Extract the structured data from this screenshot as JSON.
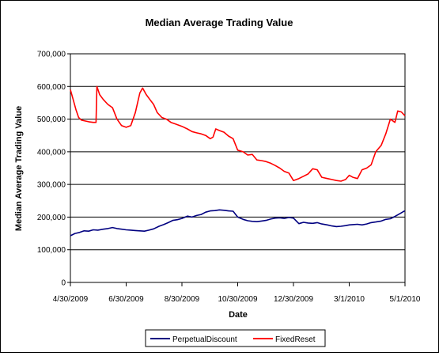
{
  "chart_data": {
    "type": "line",
    "title": "Median Average Trading Value",
    "xlabel": "Date",
    "ylabel": "Median Average Trading Value",
    "ylim": [
      0,
      700000
    ],
    "yticks": [
      "0",
      "100,000",
      "200,000",
      "300,000",
      "400,000",
      "500,000",
      "600,000",
      "700,000"
    ],
    "xticks": [
      "4/30/2009",
      "6/30/2009",
      "8/30/2009",
      "10/30/2009",
      "12/30/2009",
      "3/1/2010",
      "5/1/2010"
    ],
    "grid": true,
    "legend": "bottom",
    "series": [
      {
        "name": "PerpetualDiscount",
        "color": "#000080",
        "points": [
          [
            "2009-04-30",
            143000
          ],
          [
            "2009-05-05",
            150000
          ],
          [
            "2009-05-10",
            153000
          ],
          [
            "2009-05-15",
            158000
          ],
          [
            "2009-05-20",
            157000
          ],
          [
            "2009-05-25",
            161000
          ],
          [
            "2009-05-30",
            160000
          ],
          [
            "2009-06-05",
            163000
          ],
          [
            "2009-06-10",
            165000
          ],
          [
            "2009-06-15",
            168000
          ],
          [
            "2009-06-20",
            165000
          ],
          [
            "2009-06-25",
            163000
          ],
          [
            "2009-06-30",
            161000
          ],
          [
            "2009-07-05",
            160000
          ],
          [
            "2009-07-10",
            159000
          ],
          [
            "2009-07-15",
            158000
          ],
          [
            "2009-07-20",
            157000
          ],
          [
            "2009-07-25",
            160000
          ],
          [
            "2009-07-30",
            164000
          ],
          [
            "2009-08-05",
            172000
          ],
          [
            "2009-08-10",
            177000
          ],
          [
            "2009-08-15",
            183000
          ],
          [
            "2009-08-20",
            190000
          ],
          [
            "2009-08-25",
            192000
          ],
          [
            "2009-08-30",
            196000
          ],
          [
            "2009-09-05",
            203000
          ],
          [
            "2009-09-10",
            200000
          ],
          [
            "2009-09-15",
            205000
          ],
          [
            "2009-09-20",
            208000
          ],
          [
            "2009-09-25",
            215000
          ],
          [
            "2009-09-30",
            219000
          ],
          [
            "2009-10-05",
            220000
          ],
          [
            "2009-10-10",
            222000
          ],
          [
            "2009-10-15",
            221000
          ],
          [
            "2009-10-20",
            219000
          ],
          [
            "2009-10-25",
            218000
          ],
          [
            "2009-10-30",
            200000
          ],
          [
            "2009-11-05",
            193000
          ],
          [
            "2009-11-10",
            189000
          ],
          [
            "2009-11-15",
            187000
          ],
          [
            "2009-11-20",
            186000
          ],
          [
            "2009-11-25",
            188000
          ],
          [
            "2009-11-30",
            190000
          ],
          [
            "2009-12-05",
            194000
          ],
          [
            "2009-12-10",
            197000
          ],
          [
            "2009-12-15",
            198000
          ],
          [
            "2009-12-20",
            196000
          ],
          [
            "2009-12-25",
            199000
          ],
          [
            "2009-12-30",
            197000
          ],
          [
            "2010-01-05",
            180000
          ],
          [
            "2010-01-10",
            184000
          ],
          [
            "2010-01-15",
            182000
          ],
          [
            "2010-01-20",
            181000
          ],
          [
            "2010-01-25",
            183000
          ],
          [
            "2010-01-30",
            179000
          ],
          [
            "2010-02-05",
            176000
          ],
          [
            "2010-02-10",
            173000
          ],
          [
            "2010-02-15",
            171000
          ],
          [
            "2010-02-20",
            172000
          ],
          [
            "2010-02-25",
            174000
          ],
          [
            "2010-03-01",
            176000
          ],
          [
            "2010-03-05",
            177000
          ],
          [
            "2010-03-10",
            178000
          ],
          [
            "2010-03-15",
            176000
          ],
          [
            "2010-03-20",
            179000
          ],
          [
            "2010-03-25",
            183000
          ],
          [
            "2010-03-30",
            185000
          ],
          [
            "2010-04-05",
            188000
          ],
          [
            "2010-04-10",
            193000
          ],
          [
            "2010-04-15",
            195000
          ],
          [
            "2010-04-20",
            202000
          ],
          [
            "2010-04-25",
            210000
          ],
          [
            "2010-04-30",
            218000
          ],
          [
            "2010-05-01",
            219000
          ]
        ]
      },
      {
        "name": "FixedReset",
        "color": "#ff0000",
        "points": [
          [
            "2009-04-30",
            590000
          ],
          [
            "2009-05-03",
            560000
          ],
          [
            "2009-05-06",
            530000
          ],
          [
            "2009-05-09",
            505000
          ],
          [
            "2009-05-12",
            497000
          ],
          [
            "2009-05-15",
            495000
          ],
          [
            "2009-05-20",
            492000
          ],
          [
            "2009-05-25",
            490000
          ],
          [
            "2009-05-28",
            490000
          ],
          [
            "2009-05-29",
            600000
          ],
          [
            "2009-06-01",
            575000
          ],
          [
            "2009-06-05",
            560000
          ],
          [
            "2009-06-10",
            545000
          ],
          [
            "2009-06-15",
            535000
          ],
          [
            "2009-06-20",
            500000
          ],
          [
            "2009-06-25",
            480000
          ],
          [
            "2009-06-30",
            475000
          ],
          [
            "2009-07-05",
            480000
          ],
          [
            "2009-07-10",
            520000
          ],
          [
            "2009-07-15",
            580000
          ],
          [
            "2009-07-18",
            595000
          ],
          [
            "2009-07-22",
            575000
          ],
          [
            "2009-07-26",
            560000
          ],
          [
            "2009-07-30",
            545000
          ],
          [
            "2009-08-03",
            520000
          ],
          [
            "2009-08-08",
            505000
          ],
          [
            "2009-08-13",
            500000
          ],
          [
            "2009-08-18",
            490000
          ],
          [
            "2009-08-23",
            485000
          ],
          [
            "2009-08-30",
            478000
          ],
          [
            "2009-09-05",
            470000
          ],
          [
            "2009-09-10",
            462000
          ],
          [
            "2009-09-15",
            458000
          ],
          [
            "2009-09-20",
            455000
          ],
          [
            "2009-09-25",
            450000
          ],
          [
            "2009-09-30",
            440000
          ],
          [
            "2009-10-03",
            445000
          ],
          [
            "2009-10-06",
            470000
          ],
          [
            "2009-10-10",
            465000
          ],
          [
            "2009-10-15",
            460000
          ],
          [
            "2009-10-20",
            448000
          ],
          [
            "2009-10-25",
            440000
          ],
          [
            "2009-10-30",
            405000
          ],
          [
            "2009-11-05",
            400000
          ],
          [
            "2009-11-10",
            390000
          ],
          [
            "2009-11-15",
            392000
          ],
          [
            "2009-11-20",
            375000
          ],
          [
            "2009-11-25",
            373000
          ],
          [
            "2009-11-30",
            370000
          ],
          [
            "2009-12-05",
            365000
          ],
          [
            "2009-12-10",
            358000
          ],
          [
            "2009-12-15",
            350000
          ],
          [
            "2009-12-20",
            340000
          ],
          [
            "2009-12-25",
            335000
          ],
          [
            "2009-12-30",
            312000
          ],
          [
            "2010-01-05",
            318000
          ],
          [
            "2010-01-10",
            325000
          ],
          [
            "2010-01-15",
            332000
          ],
          [
            "2010-01-20",
            348000
          ],
          [
            "2010-01-25",
            345000
          ],
          [
            "2010-01-30",
            322000
          ],
          [
            "2010-02-05",
            318000
          ],
          [
            "2010-02-10",
            315000
          ],
          [
            "2010-02-15",
            312000
          ],
          [
            "2010-02-20",
            310000
          ],
          [
            "2010-02-25",
            315000
          ],
          [
            "2010-03-01",
            328000
          ],
          [
            "2010-03-05",
            322000
          ],
          [
            "2010-03-10",
            318000
          ],
          [
            "2010-03-15",
            345000
          ],
          [
            "2010-03-20",
            350000
          ],
          [
            "2010-03-25",
            360000
          ],
          [
            "2010-03-30",
            400000
          ],
          [
            "2010-04-05",
            420000
          ],
          [
            "2010-04-10",
            455000
          ],
          [
            "2010-04-15",
            500000
          ],
          [
            "2010-04-20",
            490000
          ],
          [
            "2010-04-23",
            525000
          ],
          [
            "2010-04-27",
            522000
          ],
          [
            "2010-05-01",
            510000
          ]
        ]
      }
    ]
  }
}
